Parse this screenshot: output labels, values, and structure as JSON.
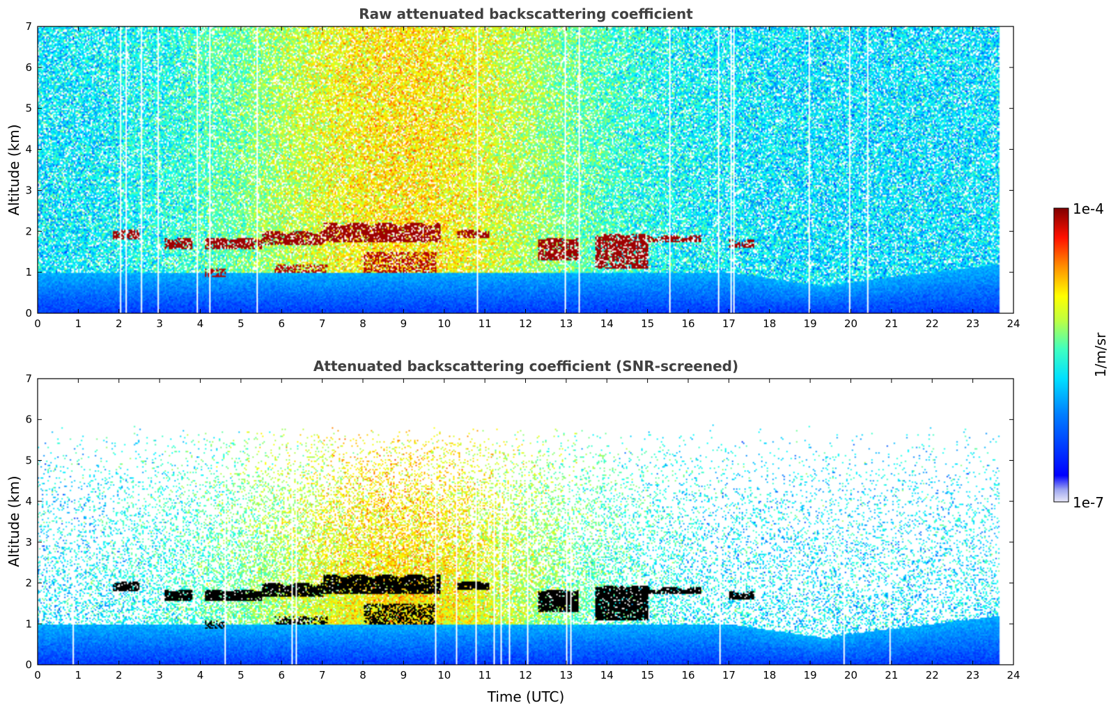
{
  "chart_data": [
    {
      "type": "heatmap",
      "title": "Raw attenuated backscattering coefficient",
      "xlabel": "",
      "ylabel": "Altitude (km)",
      "xlim": [
        0,
        24
      ],
      "ylim": [
        0,
        7
      ],
      "xticks": [
        "0",
        "1",
        "2",
        "3",
        "4",
        "5",
        "6",
        "7",
        "8",
        "9",
        "10",
        "11",
        "12",
        "13",
        "14",
        "15",
        "16",
        "17",
        "18",
        "19",
        "20",
        "21",
        "22",
        "23",
        "24"
      ],
      "yticks": [
        "0",
        "1",
        "2",
        "3",
        "4",
        "5",
        "6",
        "7"
      ],
      "data_end_time": 23.65,
      "screened": false,
      "cloud_layers": [
        {
          "start": 1.85,
          "end": 2.5,
          "base": 1.8,
          "top": 2.05
        },
        {
          "start": 3.1,
          "end": 3.8,
          "base": 1.55,
          "top": 1.85
        },
        {
          "start": 4.1,
          "end": 5.5,
          "base": 1.55,
          "top": 1.85
        },
        {
          "start": 5.5,
          "end": 7.0,
          "base": 1.65,
          "top": 2.0
        },
        {
          "start": 7.0,
          "end": 9.9,
          "base": 1.75,
          "top": 2.2
        },
        {
          "start": 10.3,
          "end": 11.1,
          "base": 1.85,
          "top": 2.05
        },
        {
          "start": 12.3,
          "end": 13.3,
          "base": 1.3,
          "top": 1.85
        },
        {
          "start": 13.7,
          "end": 15.0,
          "base": 1.1,
          "top": 1.95
        },
        {
          "start": 15.0,
          "end": 16.3,
          "base": 1.75,
          "top": 1.9
        },
        {
          "start": 17.0,
          "end": 17.6,
          "base": 1.6,
          "top": 1.8
        }
      ],
      "lower_layers": [
        {
          "start": 4.1,
          "end": 4.6,
          "base": 0.9,
          "top": 1.1
        },
        {
          "start": 5.8,
          "end": 7.1,
          "base": 1.0,
          "top": 1.2
        },
        {
          "start": 8.0,
          "end": 9.8,
          "base": 1.0,
          "top": 1.5
        }
      ],
      "colorbar": {
        "label": "1/m/sr",
        "max_label": "1e-4",
        "min_label": "1e-7",
        "scale": "log",
        "min": 1e-07,
        "max": 0.0001
      }
    },
    {
      "type": "heatmap",
      "title": "Attenuated backscattering coefficient (SNR-screened)",
      "xlabel": "Time (UTC)",
      "ylabel": "Altitude (km)",
      "xlim": [
        0,
        24
      ],
      "ylim": [
        0,
        7
      ],
      "xticks": [
        "0",
        "1",
        "2",
        "3",
        "4",
        "5",
        "6",
        "7",
        "8",
        "9",
        "10",
        "11",
        "12",
        "13",
        "14",
        "15",
        "16",
        "17",
        "18",
        "19",
        "20",
        "21",
        "22",
        "23",
        "24"
      ],
      "yticks": [
        "0",
        "1",
        "2",
        "3",
        "4",
        "5",
        "6",
        "7"
      ],
      "data_end_time": 23.65,
      "screened": true
    }
  ],
  "colors": {
    "saturated_cloud_screened": "#000000",
    "background": "#ffffff",
    "title_color": "#404040"
  }
}
